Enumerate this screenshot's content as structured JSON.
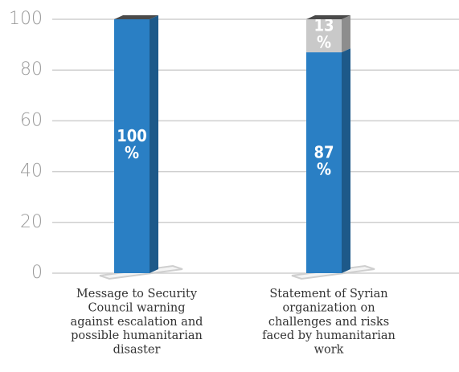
{
  "chart_data": {
    "type": "bar",
    "stacked": true,
    "categories": [
      "Message to Security Council warning against escalation and possible humanitarian disaster",
      "Statement of Syrian organization on challenges and risks faced by humanitarian work"
    ],
    "series": [
      {
        "color": "#2a7fc4",
        "values": [
          100,
          87
        ],
        "value_labels": [
          "100%",
          "87%"
        ]
      },
      {
        "color": "#c9c9c9",
        "values": [
          0,
          13
        ],
        "value_labels": [
          null,
          "13%"
        ]
      }
    ],
    "ylim": [
      0,
      100
    ],
    "yticks": [
      0,
      20,
      40,
      60,
      80,
      100
    ],
    "grid": true
  }
}
